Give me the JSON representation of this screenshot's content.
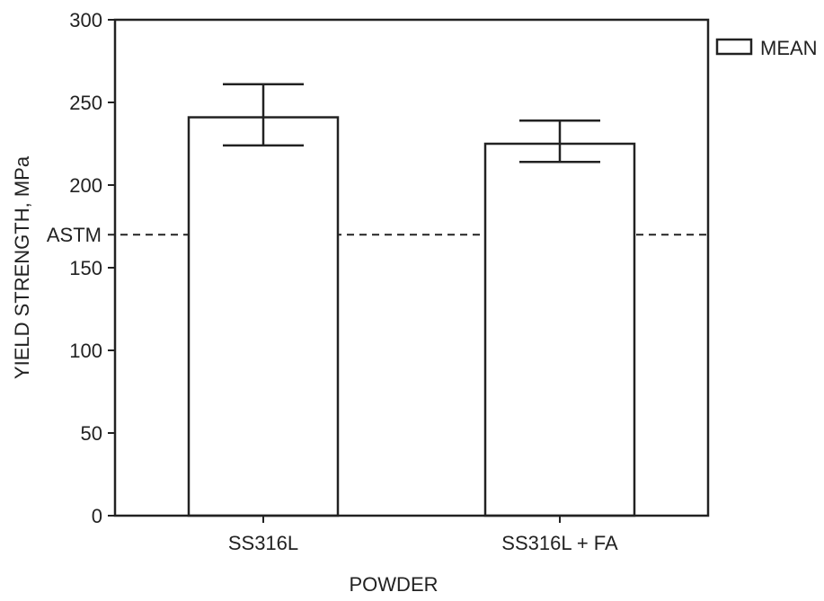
{
  "chart_data": {
    "type": "bar",
    "categories": [
      "SS316L",
      "SS316L + FA"
    ],
    "series": [
      {
        "name": "MEAN",
        "values": [
          241,
          225
        ],
        "error_low": [
          224,
          214
        ],
        "error_high": [
          261,
          239
        ]
      }
    ],
    "xlabel": "POWDER",
    "ylabel": "YIELD STRENGTH, MPa",
    "ylim": [
      0,
      300
    ],
    "yticks": [
      0,
      50,
      100,
      150,
      200,
      250,
      300
    ],
    "reference_line": {
      "label": "ASTM",
      "value": 170,
      "style": "dashed"
    },
    "legend": {
      "position": "top-right",
      "entries": [
        "MEAN"
      ]
    },
    "grid": false
  }
}
